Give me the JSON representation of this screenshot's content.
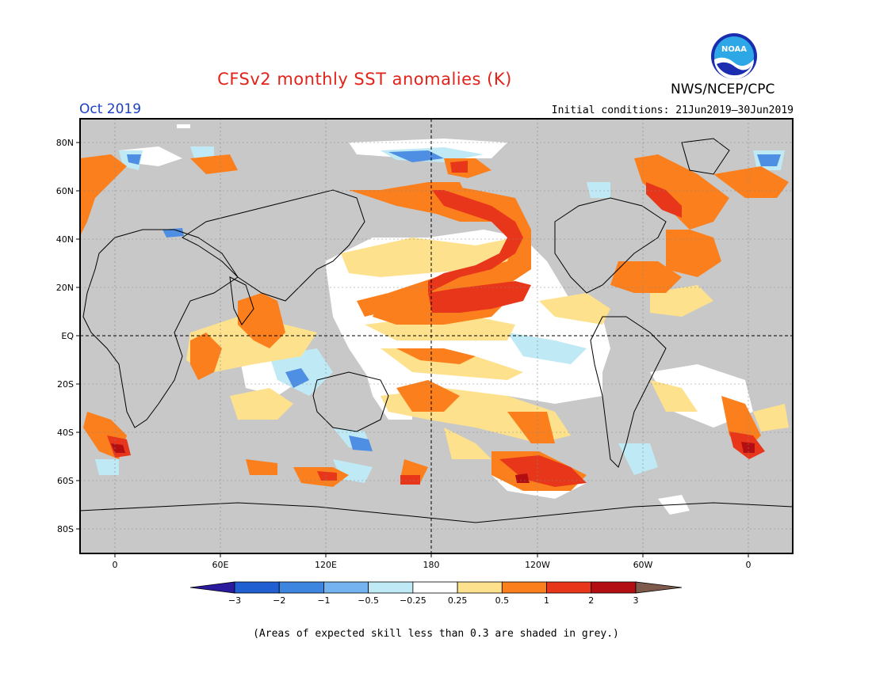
{
  "header": {
    "title": "CFSv2 monthly SST anomalies (K)",
    "organization": "NWS/NCEP/CPC",
    "month": "Oct 2019",
    "initial_conditions": "Initial conditions: 21Jun2019–30Jun2019",
    "logo_text": "NOAA"
  },
  "map": {
    "lat_ticks": [
      "80N",
      "60N",
      "40N",
      "20N",
      "EQ",
      "20S",
      "40S",
      "60S",
      "80S"
    ],
    "lon_ticks": [
      "0",
      "60E",
      "120E",
      "180",
      "120W",
      "60W",
      "0"
    ],
    "land_color": "#c8c8c8",
    "ocean_color": "#ffffff"
  },
  "colorbar": {
    "labels": [
      "−3",
      "−2",
      "−1",
      "−0.5",
      "−0.25",
      "0.25",
      "0.5",
      "1",
      "2",
      "3"
    ],
    "colors": [
      "#2a1a9e",
      "#1f5fd1",
      "#3d86e0",
      "#74b3ef",
      "#bfeaf5",
      "#ffffff",
      "#fde18c",
      "#fb7f1c",
      "#e8361a",
      "#b30f12",
      "#7d5a4c"
    ]
  },
  "footnote": "(Areas of expected skill less than 0.3 are shaded in grey.)"
}
